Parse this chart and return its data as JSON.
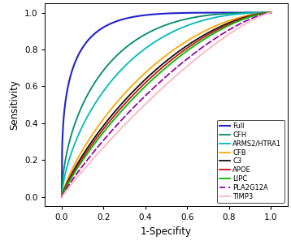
{
  "title": "",
  "xlabel": "1-Specifity",
  "ylabel": "Sensitivity",
  "xlim": [
    -0.08,
    1.08
  ],
  "ylim": [
    -0.05,
    1.05
  ],
  "xticks": [
    0.0,
    0.2,
    0.4,
    0.6,
    0.8,
    1.0
  ],
  "yticks": [
    0.0,
    0.2,
    0.4,
    0.6,
    0.8,
    1.0
  ],
  "curves": [
    {
      "name": "Full",
      "color": "#2222CC",
      "lw": 1.5,
      "linestyle": "solid",
      "alpha": 1.0,
      "shape_alpha": 0.3,
      "shape_beta": 5.0
    },
    {
      "name": "CFH",
      "color": "#008B6A",
      "lw": 1.3,
      "linestyle": "solid",
      "alpha": 1.0,
      "shape_alpha": 0.55,
      "shape_beta": 2.8
    },
    {
      "name": "ARMS2/HTRA1",
      "color": "#00BBBB",
      "lw": 1.3,
      "linestyle": "solid",
      "alpha": 1.0,
      "shape_alpha": 0.65,
      "shape_beta": 2.3
    },
    {
      "name": "CFB",
      "color": "#FFA500",
      "lw": 1.3,
      "linestyle": "solid",
      "alpha": 1.0,
      "shape_alpha": 0.78,
      "shape_beta": 1.75
    },
    {
      "name": "C3",
      "color": "#111111",
      "lw": 1.3,
      "linestyle": "solid",
      "alpha": 1.0,
      "shape_alpha": 0.82,
      "shape_beta": 1.65
    },
    {
      "name": "APOE",
      "color": "#CC1111",
      "lw": 1.3,
      "linestyle": "solid",
      "alpha": 1.0,
      "shape_alpha": 0.84,
      "shape_beta": 1.6
    },
    {
      "name": "LIPC",
      "color": "#00BB00",
      "lw": 1.3,
      "linestyle": "solid",
      "alpha": 1.0,
      "shape_alpha": 0.86,
      "shape_beta": 1.55
    },
    {
      "name": "PLA2G12A",
      "color": "#9900AA",
      "lw": 1.3,
      "linestyle": "dashed",
      "alpha": 1.0,
      "shape_alpha": 0.9,
      "shape_beta": 1.4
    },
    {
      "name": "TIMP3",
      "color": "#FFB6C1",
      "lw": 1.3,
      "linestyle": "solid",
      "alpha": 1.0,
      "shape_alpha": 0.95,
      "shape_beta": 1.3
    }
  ],
  "legend_fontsize": 6.0,
  "background_color": "#ffffff"
}
